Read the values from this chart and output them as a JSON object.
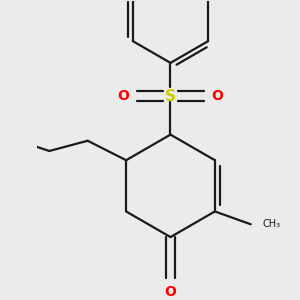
{
  "background_color": "#ebebeb",
  "bond_color": "#1a1a1a",
  "oxygen_color": "#ff0000",
  "sulfur_color": "#cccc00",
  "line_width": 1.6,
  "figsize": [
    3.0,
    3.0
  ],
  "dpi": 100,
  "xlim": [
    -2.2,
    2.2
  ],
  "ylim": [
    -2.8,
    2.8
  ]
}
